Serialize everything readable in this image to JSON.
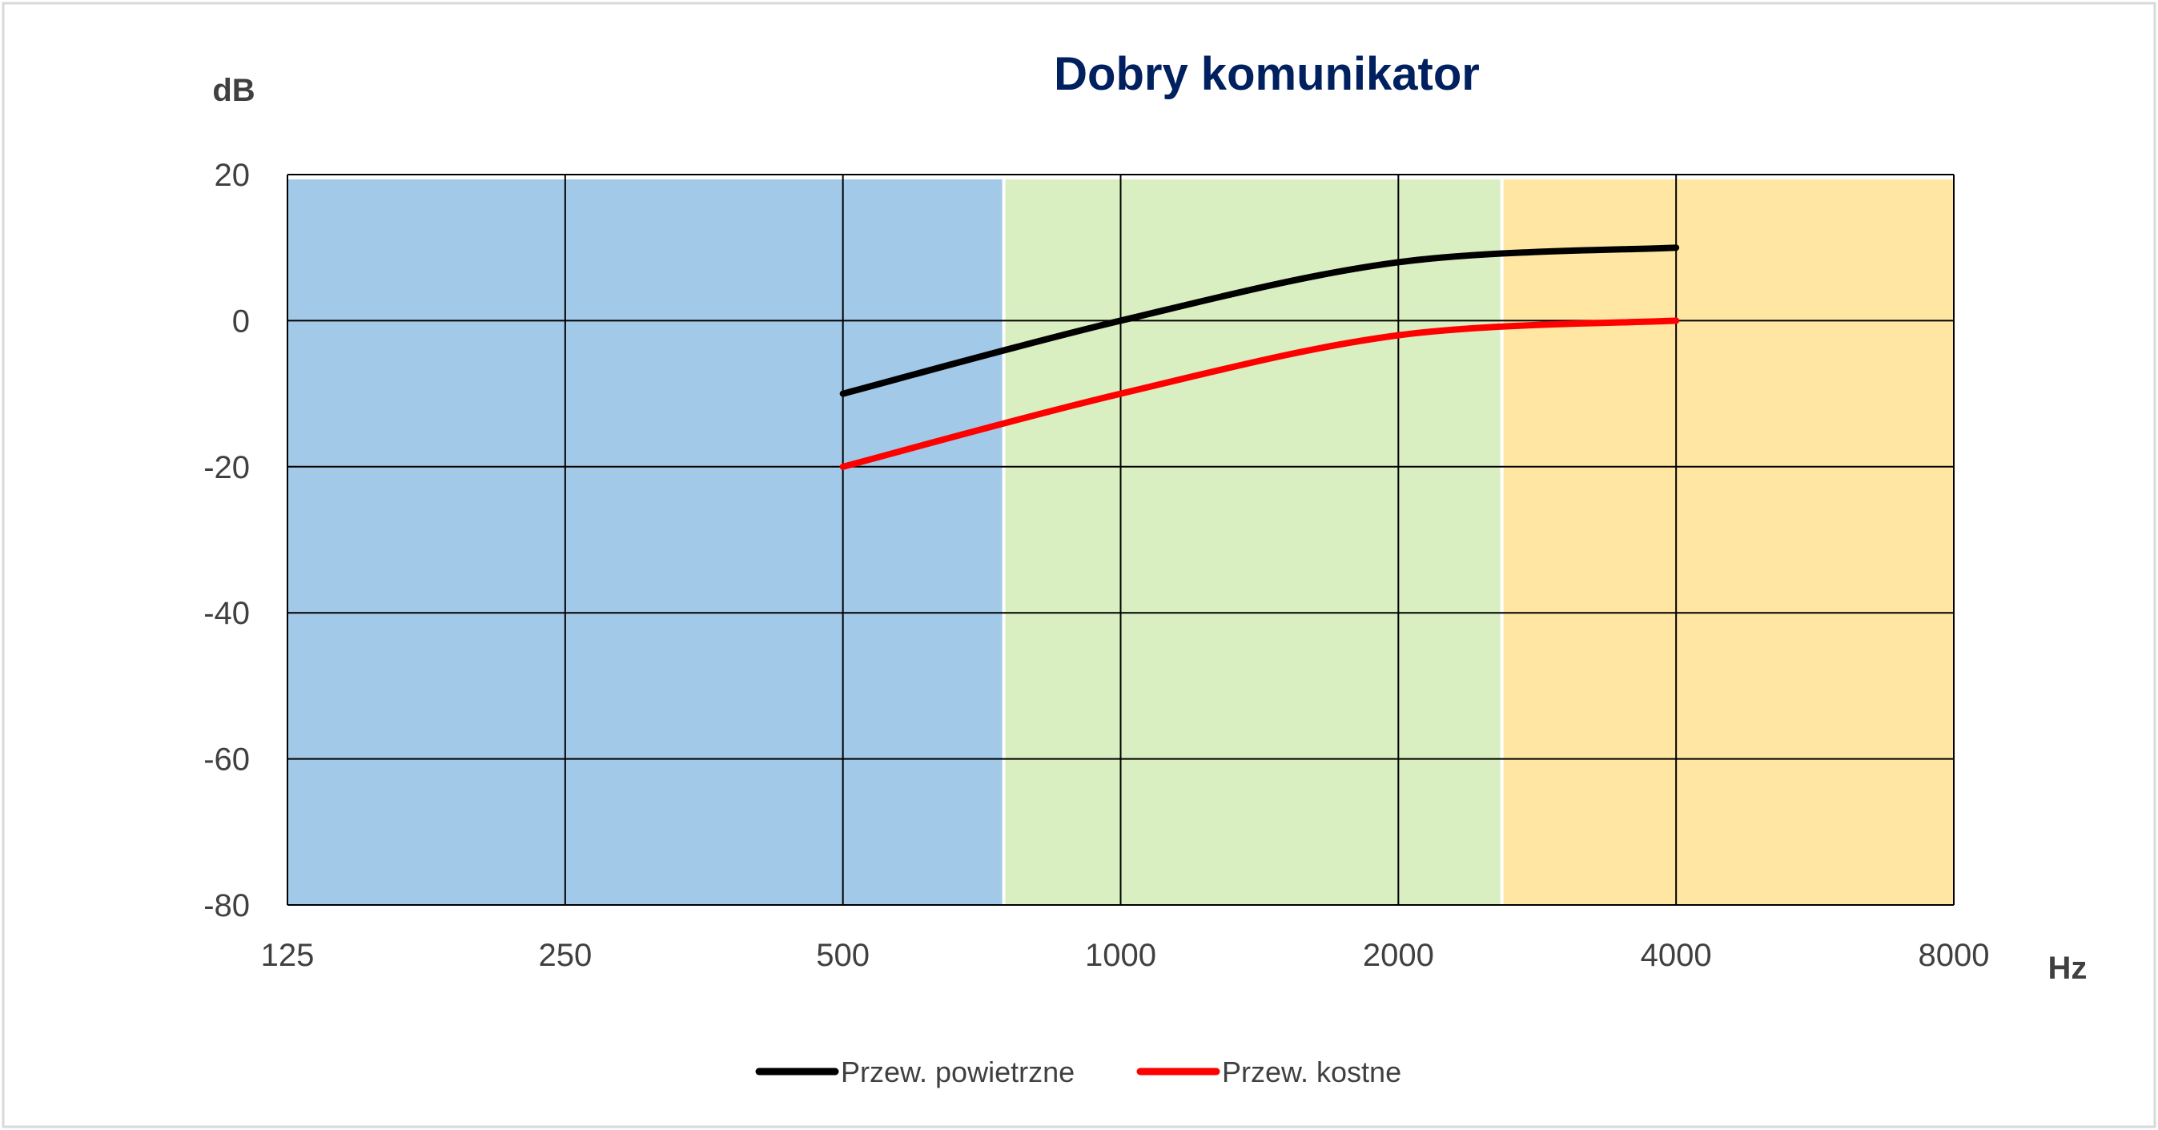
{
  "chart_data": {
    "type": "line",
    "title": "Dobry komunikator",
    "xlabel": "Hz",
    "ylabel": "dB",
    "x_scale": "log2",
    "categories": [
      "125",
      "250",
      "500",
      "1000",
      "2000",
      "4000",
      "8000"
    ],
    "x_ticks": [
      125,
      250,
      500,
      1000,
      2000,
      4000,
      8000
    ],
    "ylim": [
      -80,
      20
    ],
    "y_ticks": [
      20,
      0,
      -20,
      -40,
      -60,
      -80
    ],
    "grid": true,
    "legend_position": "bottom",
    "bands": [
      {
        "from": 125,
        "to": 750,
        "color": "#a3c9e8"
      },
      {
        "from": 750,
        "to": 2600,
        "color": "#d9efc1"
      },
      {
        "from": 2600,
        "to": 8000,
        "color": "#ffe7a3"
      }
    ],
    "series": [
      {
        "name": "Przew. powietrzne",
        "color": "#000000",
        "x": [
          500,
          1000,
          2000,
          4000
        ],
        "values": [
          -10,
          0,
          8,
          10
        ]
      },
      {
        "name": "Przew. kostne",
        "color": "#ff0000",
        "x": [
          500,
          1000,
          2000,
          4000
        ],
        "values": [
          -20,
          -10,
          -2,
          0
        ]
      }
    ]
  },
  "colors": {
    "title": "#002060",
    "axis_text": "#404040",
    "grid": "#000000",
    "frame": "#d9d9d9"
  }
}
